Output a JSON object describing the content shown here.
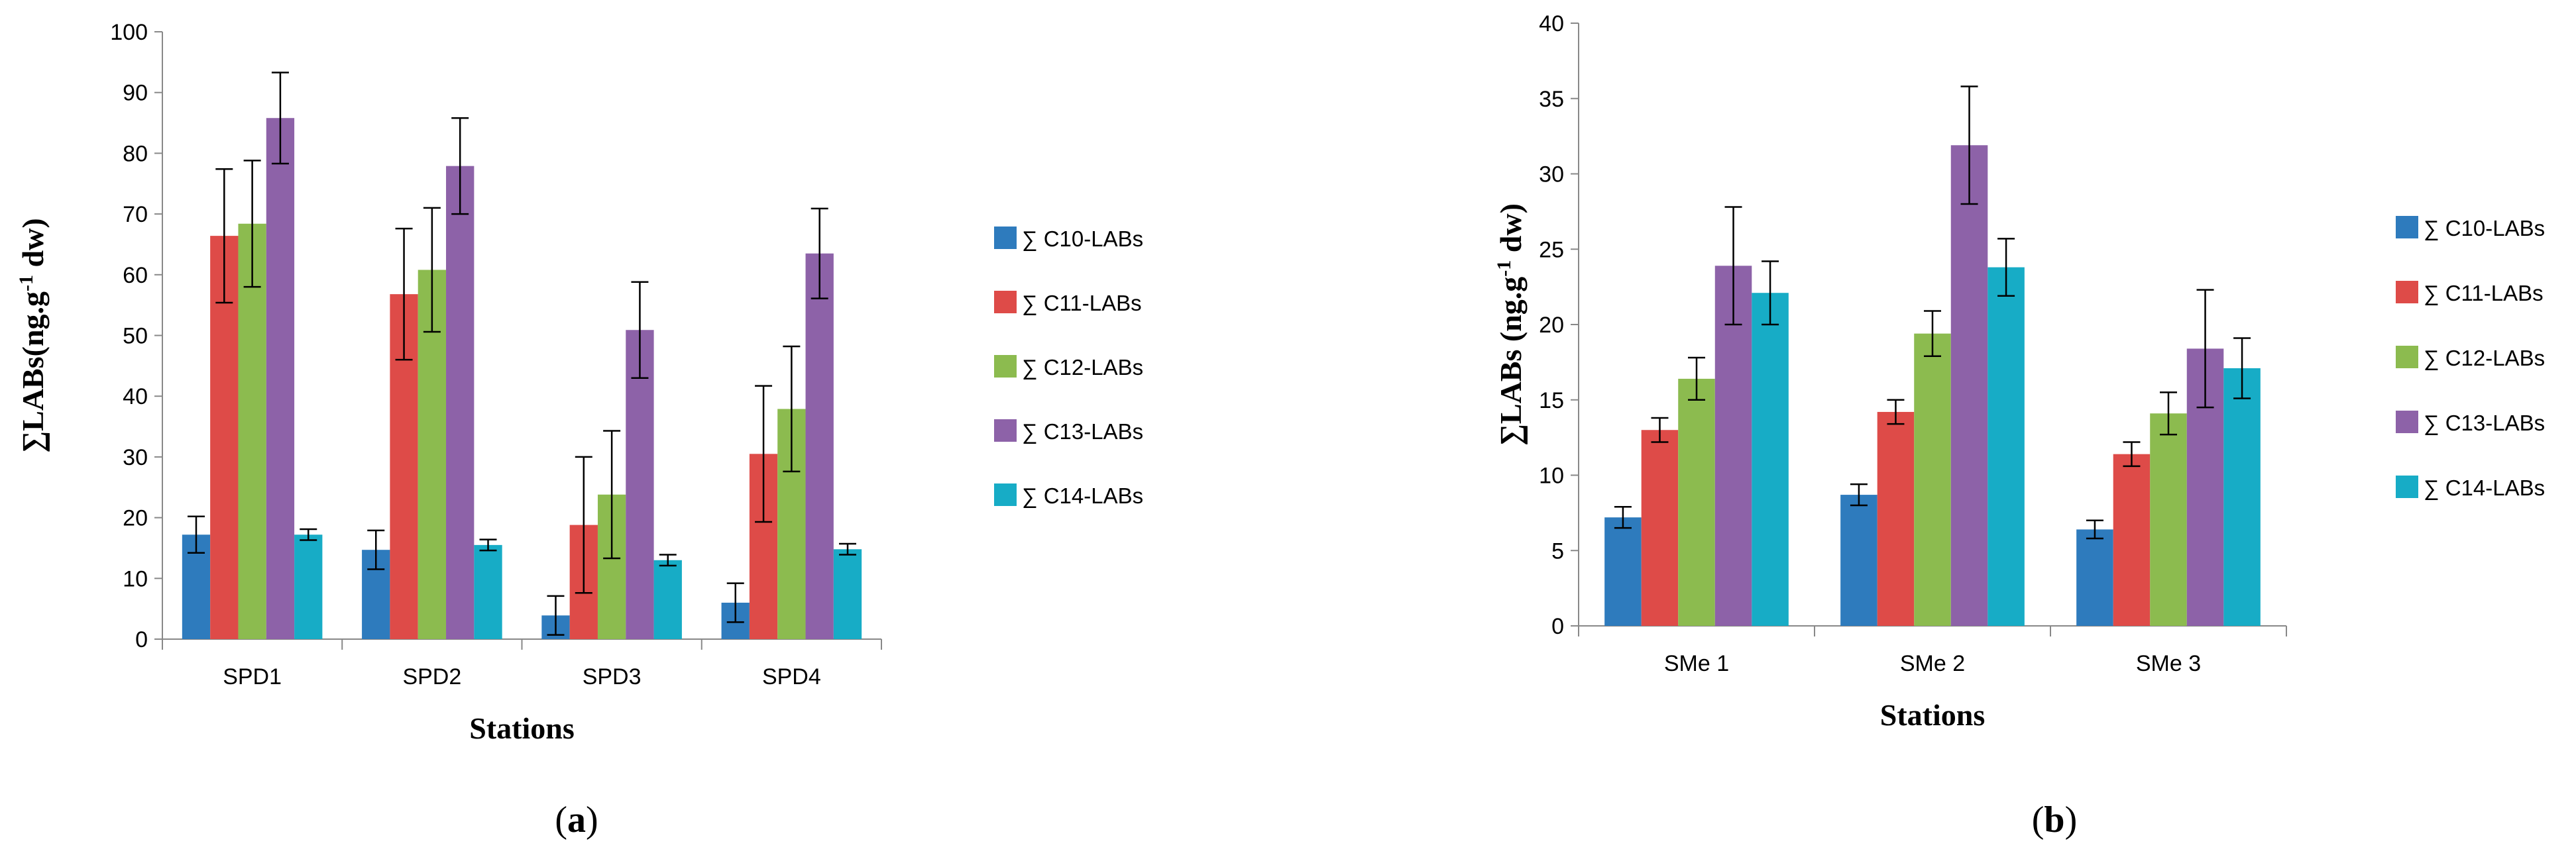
{
  "legend_labels": [
    "∑ C10-LABs",
    "∑ C11-LABs",
    "∑ C12-LABs",
    "∑ C13-LABs",
    "∑ C14-LABs"
  ],
  "series_colors": [
    "#2e7bbd",
    "#de4b48",
    "#8cbb4f",
    "#8d62a8",
    "#17acc6"
  ],
  "panels": [
    {
      "open": "(",
      "letter": "a",
      "close": ")"
    },
    {
      "open": "(",
      "letter": "b",
      "close": ")"
    }
  ],
  "chart_data": [
    {
      "type": "bar",
      "title": "",
      "xlabel": "Stations",
      "ylabel_main": "∑LABs(ng.g",
      "ylabel_sup": "-1",
      "ylabel_end": " dw)",
      "categories": [
        "SPD1",
        "SPD2",
        "SPD3",
        "SPD4"
      ],
      "ylim": [
        0,
        100
      ],
      "yticks": [
        0,
        10,
        20,
        30,
        40,
        50,
        60,
        70,
        80,
        90,
        100
      ],
      "series": [
        {
          "name": "∑ C10-LABs",
          "values": [
            17.2,
            14.7,
            3.9,
            6.0
          ],
          "errors": [
            3.0,
            3.2,
            3.2,
            3.2
          ]
        },
        {
          "name": "∑ C11-LABs",
          "values": [
            66.4,
            56.8,
            18.8,
            30.5
          ],
          "errors": [
            11.0,
            10.8,
            11.2,
            11.2
          ]
        },
        {
          "name": "∑ C12-LABs",
          "values": [
            68.4,
            60.8,
            23.8,
            37.9
          ],
          "errors": [
            10.4,
            10.2,
            10.5,
            10.3
          ]
        },
        {
          "name": "∑ C13-LABs",
          "values": [
            85.8,
            77.9,
            50.9,
            63.5
          ],
          "errors": [
            7.5,
            7.9,
            7.9,
            7.4
          ]
        },
        {
          "name": "∑ C14-LABs",
          "values": [
            17.2,
            15.5,
            13.0,
            14.8
          ],
          "errors": [
            0.9,
            0.9,
            0.9,
            0.9
          ]
        }
      ]
    },
    {
      "type": "bar",
      "title": "",
      "xlabel": "Stations",
      "ylabel_main": "∑LABs (ng.g",
      "ylabel_sup": "-1",
      "ylabel_end": " dw)",
      "categories": [
        "SMe 1",
        "SMe 2",
        "SMe 3"
      ],
      "ylim": [
        0,
        40
      ],
      "yticks": [
        0,
        5,
        10,
        15,
        20,
        25,
        30,
        35,
        40
      ],
      "series": [
        {
          "name": "∑ C10-LABs",
          "values": [
            7.2,
            8.7,
            6.4
          ],
          "errors": [
            0.7,
            0.7,
            0.6
          ]
        },
        {
          "name": "∑ C11-LABs",
          "values": [
            13.0,
            14.2,
            11.4
          ],
          "errors": [
            0.8,
            0.8,
            0.8
          ]
        },
        {
          "name": "∑ C12-LABs",
          "values": [
            16.4,
            19.4,
            14.1
          ],
          "errors": [
            1.4,
            1.5,
            1.4
          ]
        },
        {
          "name": "∑ C13-LABs",
          "values": [
            23.9,
            31.9,
            18.4
          ],
          "errors": [
            3.9,
            3.9,
            3.9
          ]
        },
        {
          "name": "∑ C14-LABs",
          "values": [
            22.1,
            23.8,
            17.1
          ],
          "errors": [
            2.1,
            1.9,
            2.0
          ]
        }
      ]
    }
  ]
}
